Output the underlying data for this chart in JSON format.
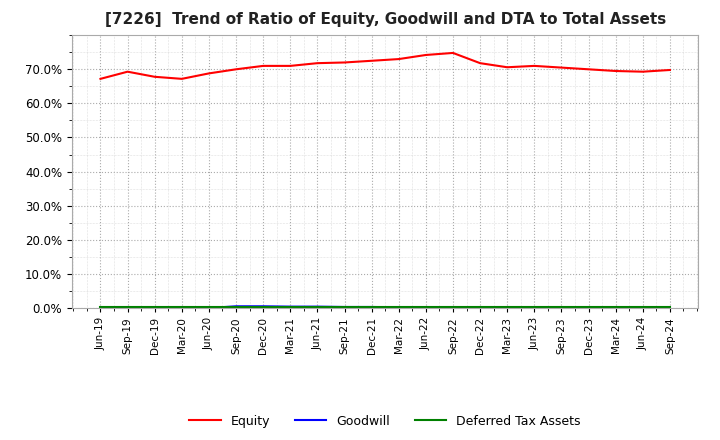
{
  "title": "[7226]  Trend of Ratio of Equity, Goodwill and DTA to Total Assets",
  "x_labels": [
    "Jun-19",
    "Sep-19",
    "Dec-19",
    "Mar-20",
    "Jun-20",
    "Sep-20",
    "Dec-20",
    "Mar-21",
    "Jun-21",
    "Sep-21",
    "Dec-21",
    "Mar-22",
    "Jun-22",
    "Sep-22",
    "Dec-22",
    "Mar-23",
    "Jun-23",
    "Sep-23",
    "Dec-23",
    "Mar-24",
    "Jun-24",
    "Sep-24"
  ],
  "equity": [
    0.672,
    0.693,
    0.678,
    0.672,
    0.688,
    0.7,
    0.71,
    0.71,
    0.718,
    0.72,
    0.725,
    0.73,
    0.742,
    0.748,
    0.718,
    0.706,
    0.71,
    0.705,
    0.7,
    0.695,
    0.693,
    0.698
  ],
  "goodwill": [
    0.0,
    0.0,
    0.0,
    0.0,
    0.0,
    0.005,
    0.005,
    0.004,
    0.004,
    0.003,
    0.003,
    0.002,
    0.002,
    0.002,
    0.001,
    0.001,
    0.001,
    0.0,
    0.0,
    0.0,
    0.0,
    0.001
  ],
  "dta": [
    0.003,
    0.003,
    0.003,
    0.003,
    0.003,
    0.003,
    0.003,
    0.003,
    0.003,
    0.003,
    0.003,
    0.003,
    0.003,
    0.003,
    0.003,
    0.003,
    0.003,
    0.003,
    0.003,
    0.003,
    0.003,
    0.003
  ],
  "equity_color": "#ff0000",
  "goodwill_color": "#0000ff",
  "dta_color": "#008000",
  "ylim": [
    0.0,
    0.8
  ],
  "yticks": [
    0.0,
    0.1,
    0.2,
    0.3,
    0.4,
    0.5,
    0.6,
    0.7
  ],
  "background_color": "#ffffff",
  "grid_color": "#aaaaaa",
  "title_fontsize": 11
}
